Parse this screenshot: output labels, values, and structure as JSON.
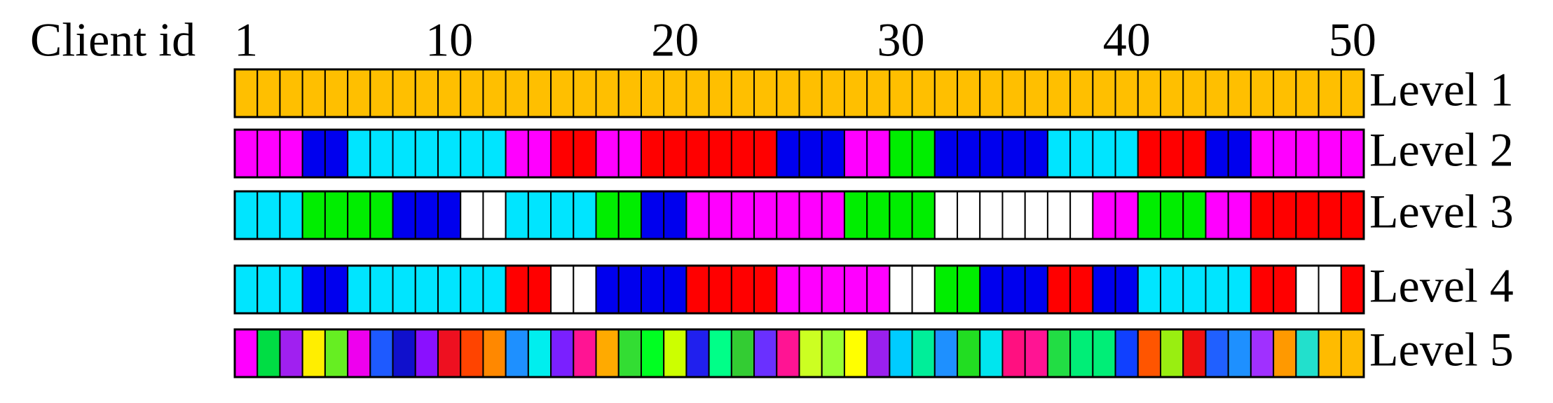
{
  "header": {
    "label": "Client id",
    "ticks": [
      1,
      10,
      20,
      30,
      40,
      50
    ]
  },
  "levels": [
    {
      "label": "Level 1",
      "cells": [
        "#ffbf00",
        "#ffbf00",
        "#ffbf00",
        "#ffbf00",
        "#ffbf00",
        "#ffbf00",
        "#ffbf00",
        "#ffbf00",
        "#ffbf00",
        "#ffbf00",
        "#ffbf00",
        "#ffbf00",
        "#ffbf00",
        "#ffbf00",
        "#ffbf00",
        "#ffbf00",
        "#ffbf00",
        "#ffbf00",
        "#ffbf00",
        "#ffbf00",
        "#ffbf00",
        "#ffbf00",
        "#ffbf00",
        "#ffbf00",
        "#ffbf00",
        "#ffbf00",
        "#ffbf00",
        "#ffbf00",
        "#ffbf00",
        "#ffbf00",
        "#ffbf00",
        "#ffbf00",
        "#ffbf00",
        "#ffbf00",
        "#ffbf00",
        "#ffbf00",
        "#ffbf00",
        "#ffbf00",
        "#ffbf00",
        "#ffbf00",
        "#ffbf00",
        "#ffbf00",
        "#ffbf00",
        "#ffbf00",
        "#ffbf00",
        "#ffbf00",
        "#ffbf00",
        "#ffbf00",
        "#ffbf00",
        "#ffbf00"
      ]
    },
    {
      "label": "Level 2",
      "cells": [
        "#ff00ff",
        "#ff00ff",
        "#ff00ff",
        "#0000ee",
        "#0000ee",
        "#00e5ff",
        "#00e5ff",
        "#00e5ff",
        "#00e5ff",
        "#00e5ff",
        "#00e5ff",
        "#00e5ff",
        "#ff00ff",
        "#ff00ff",
        "#ff0000",
        "#ff0000",
        "#ff00ff",
        "#ff00ff",
        "#ff0000",
        "#ff0000",
        "#ff0000",
        "#ff0000",
        "#ff0000",
        "#ff0000",
        "#0000ee",
        "#0000ee",
        "#0000ee",
        "#ff00ff",
        "#ff00ff",
        "#00ee00",
        "#00ee00",
        "#0000ee",
        "#0000ee",
        "#0000ee",
        "#0000ee",
        "#0000ee",
        "#00e5ff",
        "#00e5ff",
        "#00e5ff",
        "#00e5ff",
        "#ff0000",
        "#ff0000",
        "#ff0000",
        "#0000ee",
        "#0000ee",
        "#ff00ff",
        "#ff00ff",
        "#ff00ff",
        "#ff00ff",
        "#ff00ff"
      ]
    },
    {
      "label": "Level 3",
      "cells": [
        "#00e5ff",
        "#00e5ff",
        "#00e5ff",
        "#00ee00",
        "#00ee00",
        "#00ee00",
        "#00ee00",
        "#0000ee",
        "#0000ee",
        "#0000ee",
        "#ffffff",
        "#ffffff",
        "#00e5ff",
        "#00e5ff",
        "#00e5ff",
        "#00e5ff",
        "#00ee00",
        "#00ee00",
        "#0000ee",
        "#0000ee",
        "#ff00ff",
        "#ff00ff",
        "#ff00ff",
        "#ff00ff",
        "#ff00ff",
        "#ff00ff",
        "#ff00ff",
        "#00ee00",
        "#00ee00",
        "#00ee00",
        "#00ee00",
        "#ffffff",
        "#ffffff",
        "#ffffff",
        "#ffffff",
        "#ffffff",
        "#ffffff",
        "#ffffff",
        "#ff00ff",
        "#ff00ff",
        "#00ee00",
        "#00ee00",
        "#00ee00",
        "#ff00ff",
        "#ff00ff",
        "#ff0000",
        "#ff0000",
        "#ff0000",
        "#ff0000",
        "#ff0000"
      ]
    },
    {
      "label": "Level 4",
      "cells": [
        "#00e5ff",
        "#00e5ff",
        "#00e5ff",
        "#0000ee",
        "#0000ee",
        "#00e5ff",
        "#00e5ff",
        "#00e5ff",
        "#00e5ff",
        "#00e5ff",
        "#00e5ff",
        "#00e5ff",
        "#ff0000",
        "#ff0000",
        "#ffffff",
        "#ffffff",
        "#0000ee",
        "#0000ee",
        "#0000ee",
        "#0000ee",
        "#ff0000",
        "#ff0000",
        "#ff0000",
        "#ff0000",
        "#ff00ff",
        "#ff00ff",
        "#ff00ff",
        "#ff00ff",
        "#ff00ff",
        "#ffffff",
        "#ffffff",
        "#00ee00",
        "#00ee00",
        "#0000ee",
        "#0000ee",
        "#0000ee",
        "#ff0000",
        "#ff0000",
        "#0000ee",
        "#0000ee",
        "#00e5ff",
        "#00e5ff",
        "#00e5ff",
        "#00e5ff",
        "#00e5ff",
        "#ff0000",
        "#ff0000",
        "#ffffff",
        "#ffffff",
        "#ff0000"
      ]
    },
    {
      "label": "Level 5",
      "cells": [
        "#ff00ff",
        "#00dd44",
        "#a020f0",
        "#ffee00",
        "#66ee22",
        "#ee00ee",
        "#1e5aff",
        "#1010cc",
        "#8a10ff",
        "#ee1020",
        "#ff4400",
        "#ff8800",
        "#1e90ff",
        "#00eeee",
        "#7a20ff",
        "#ff1493",
        "#ffaa00",
        "#33dd33",
        "#00ff22",
        "#ccff00",
        "#2020ee",
        "#00ff88",
        "#33cc33",
        "#6a30ff",
        "#ff1493",
        "#ccff22",
        "#99ff33",
        "#ffff00",
        "#9a20ee",
        "#00ccff",
        "#00ee99",
        "#1e90ff",
        "#22dd22",
        "#00e5ee",
        "#ff1080",
        "#ff1493",
        "#22dd44",
        "#00ee77",
        "#00ee77",
        "#1040ff",
        "#ff5500",
        "#99ee11",
        "#ee1111",
        "#2060ff",
        "#1e90ff",
        "#a030ff",
        "#ff9900",
        "#22e0cc",
        "#ffbb00",
        "#ffbb00"
      ]
    }
  ]
}
